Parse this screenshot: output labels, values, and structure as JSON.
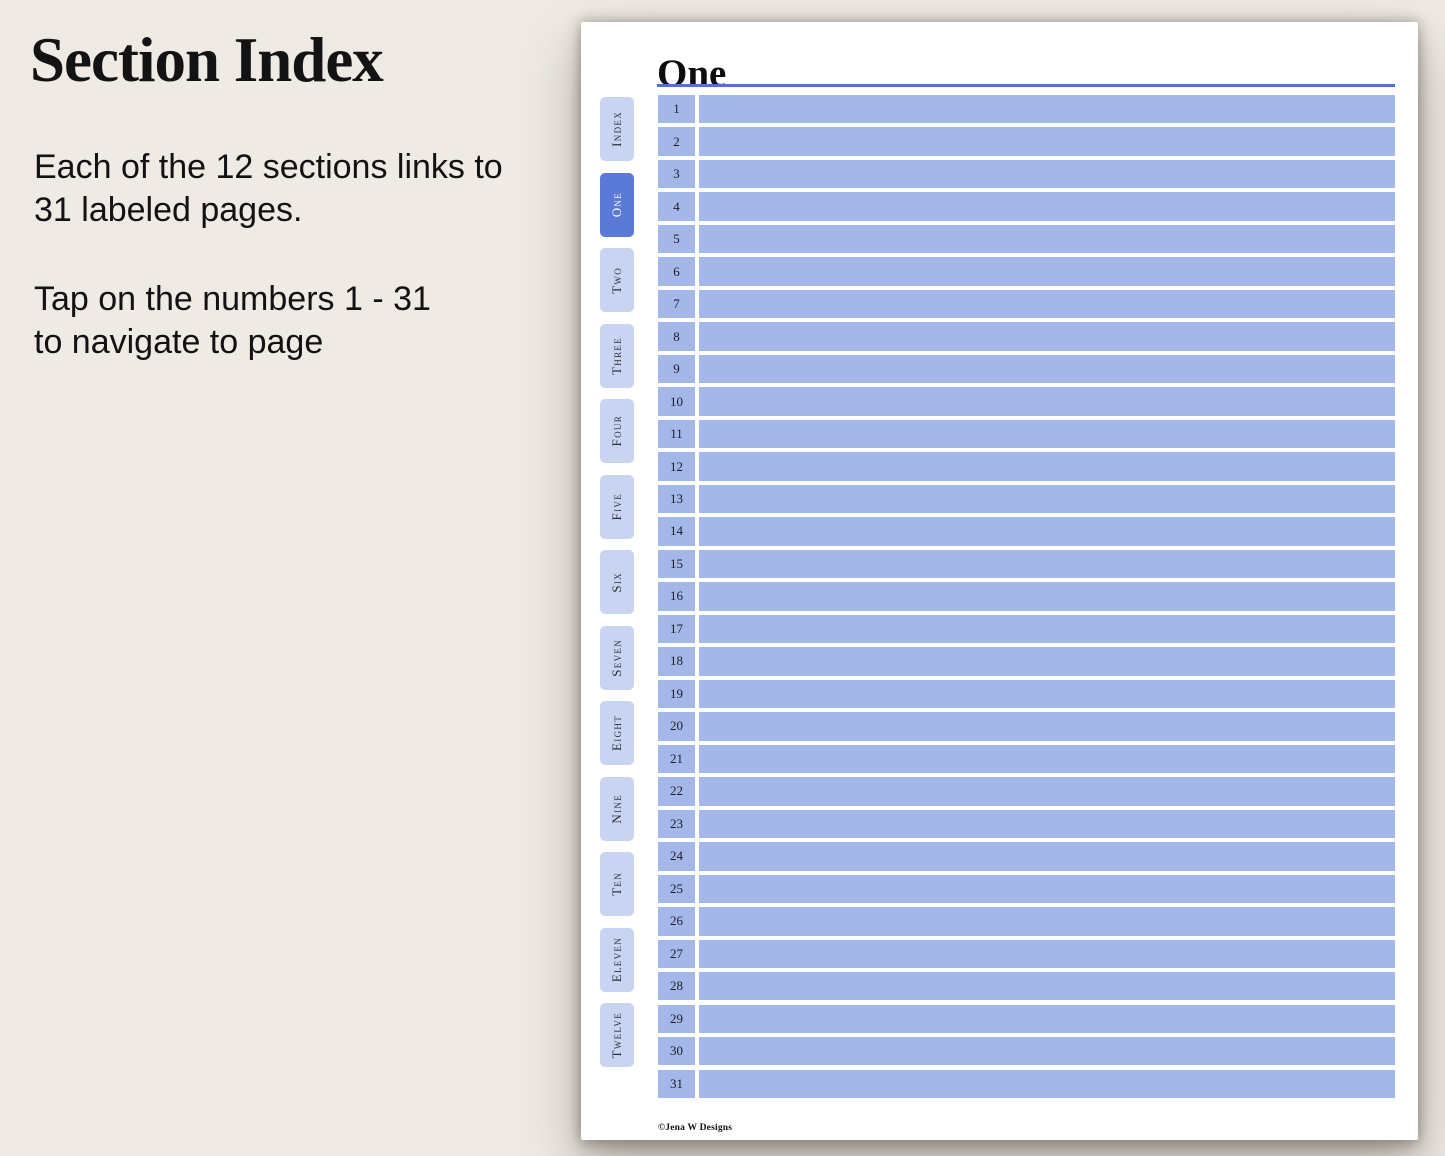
{
  "colors": {
    "bg": "#efeae3",
    "page-bg": "#ffffff",
    "tab-inactive": "#c8d4f1",
    "tab-active": "#5b79d7",
    "row-fill": "#a3b8e9",
    "rule": "#5372cc",
    "ink": "#16161c"
  },
  "left_panel": {
    "title": "Section Index",
    "body_lines": [
      "Each of the 12 sections links to",
      "31 labeled pages."
    ],
    "body2_lines": [
      "Tap on the numbers 1 - 31",
      "to navigate to page"
    ]
  },
  "page": {
    "title": "One",
    "footer": "©Jena W Designs",
    "active_tab": "One",
    "tabs": [
      {
        "label": "Index",
        "active": false
      },
      {
        "label": "One",
        "active": true
      },
      {
        "label": "Two",
        "active": false
      },
      {
        "label": "Three",
        "active": false
      },
      {
        "label": "Four",
        "active": false
      },
      {
        "label": "Five",
        "active": false
      },
      {
        "label": "Six",
        "active": false
      },
      {
        "label": "Seven",
        "active": false
      },
      {
        "label": "Eight",
        "active": false
      },
      {
        "label": "Nine",
        "active": false
      },
      {
        "label": "Ten",
        "active": false
      },
      {
        "label": "Eleven",
        "active": false
      },
      {
        "label": "Twelve",
        "active": false
      }
    ],
    "rows": [
      "1",
      "2",
      "3",
      "4",
      "5",
      "6",
      "7",
      "8",
      "9",
      "10",
      "11",
      "12",
      "13",
      "14",
      "15",
      "16",
      "17",
      "18",
      "19",
      "20",
      "21",
      "22",
      "23",
      "24",
      "25",
      "26",
      "27",
      "28",
      "29",
      "30",
      "31"
    ]
  }
}
